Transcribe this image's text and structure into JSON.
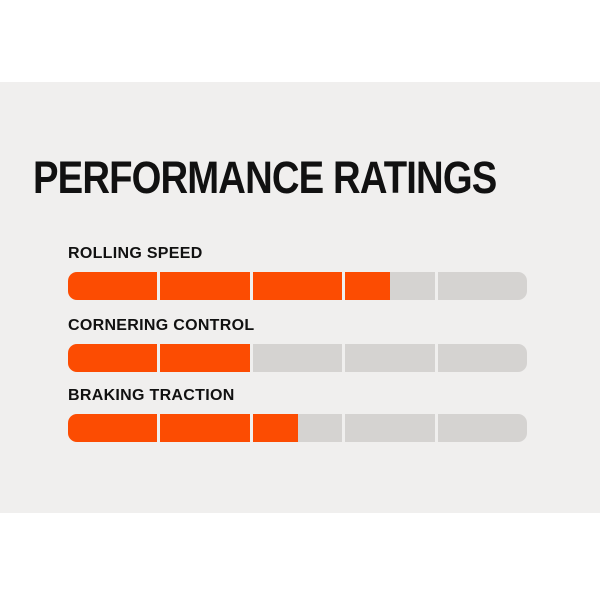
{
  "title": "PERFORMANCE RATINGS",
  "chart_data": {
    "type": "bar",
    "title": "PERFORMANCE RATINGS",
    "max_rating": 5,
    "segments_per_bar": 5,
    "rows": [
      {
        "label": "ROLLING SPEED",
        "value": 3.5
      },
      {
        "label": "CORNERING CONTROL",
        "value": 2
      },
      {
        "label": "BRAKING TRACTION",
        "value": 2.5
      }
    ],
    "colors": {
      "filled": "#fc4c02",
      "empty": "#d5d3d1",
      "panel_background": "#f0efee",
      "page_background": "#ffffff",
      "text": "#111111"
    },
    "legend": "none",
    "grid": false
  }
}
